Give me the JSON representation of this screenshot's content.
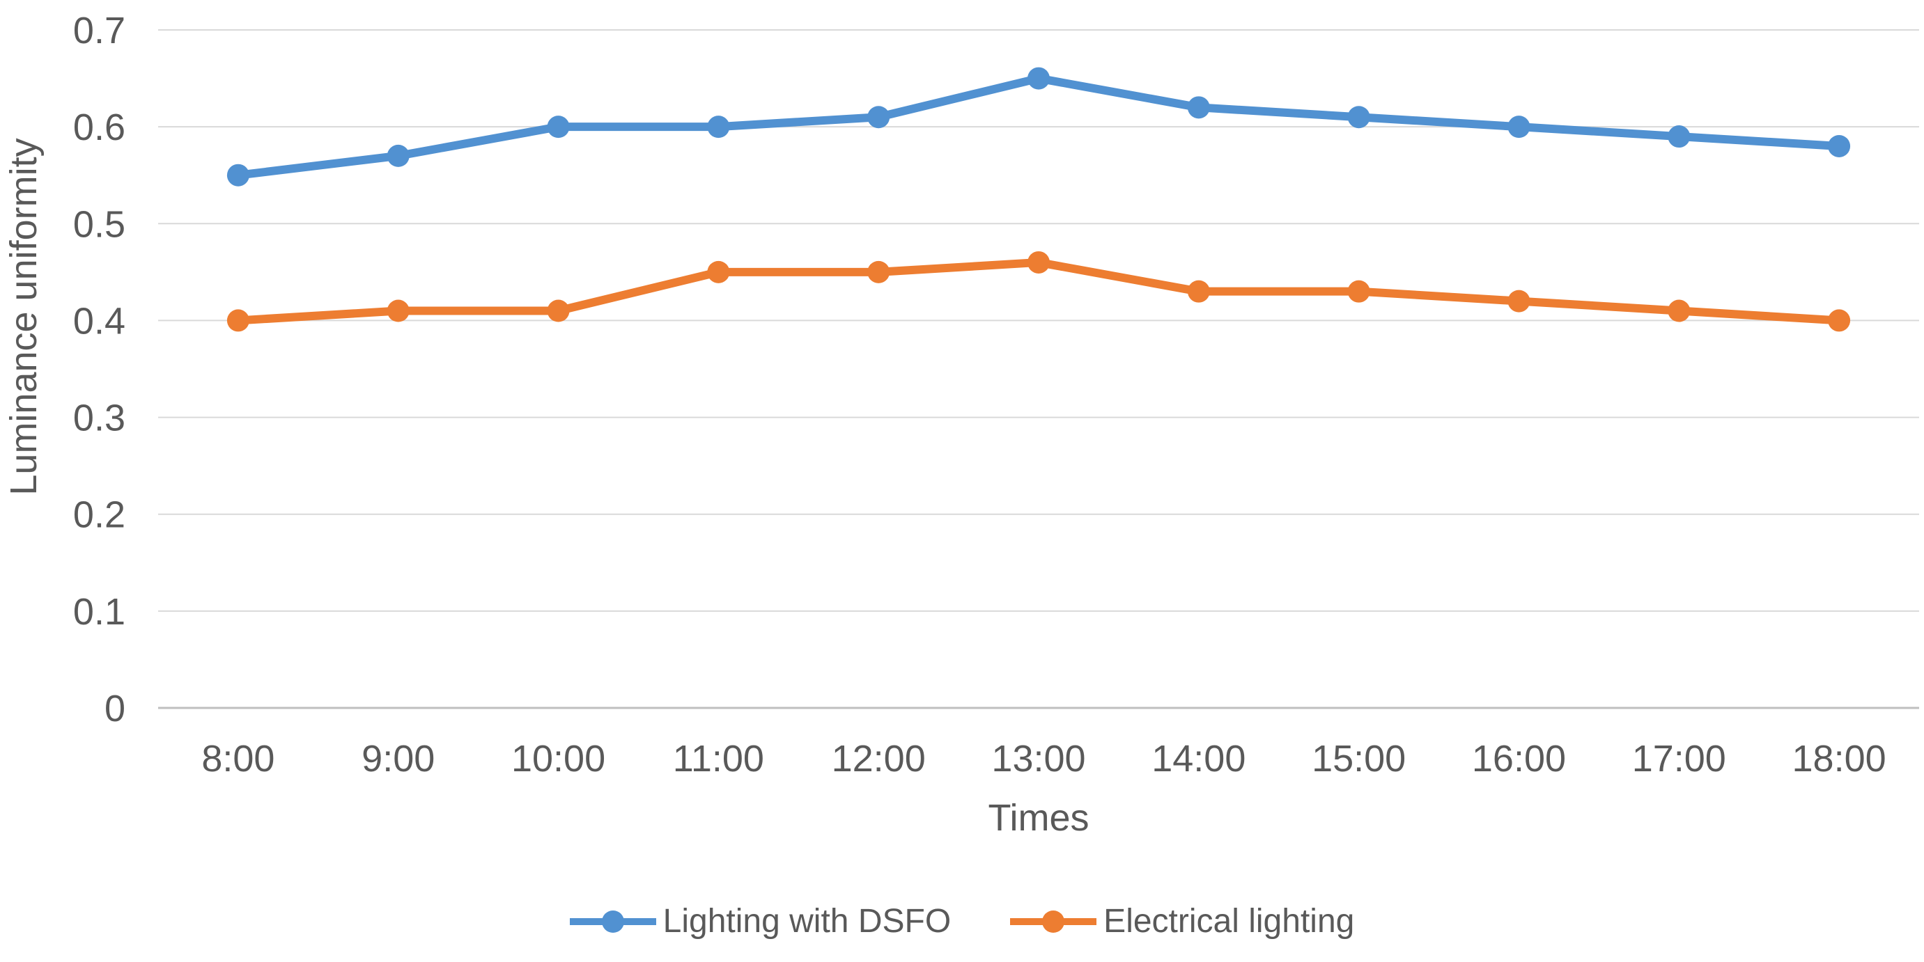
{
  "chart_data": {
    "type": "line",
    "title": "",
    "xlabel": "Times",
    "ylabel": "Luminance uniformity",
    "categories": [
      "8:00",
      "9:00",
      "10:00",
      "11:00",
      "12:00",
      "13:00",
      "14:00",
      "15:00",
      "16:00",
      "17:00",
      "18:00"
    ],
    "series": [
      {
        "name": "Lighting with DSFO",
        "color": "#5191D1",
        "values": [
          0.55,
          0.57,
          0.6,
          0.6,
          0.61,
          0.65,
          0.62,
          0.61,
          0.6,
          0.59,
          0.58
        ]
      },
      {
        "name": "Electrical lighting",
        "color": "#ED7D31",
        "values": [
          0.4,
          0.41,
          0.41,
          0.45,
          0.45,
          0.46,
          0.43,
          0.43,
          0.42,
          0.41,
          0.4
        ]
      }
    ],
    "ylim": [
      0,
      0.7
    ],
    "yticks": [
      0,
      0.1,
      0.2,
      0.3,
      0.4,
      0.5,
      0.6,
      0.7
    ],
    "ytick_labels": [
      "0",
      "0.1",
      "0.2",
      "0.3",
      "0.4",
      "0.5",
      "0.6",
      "0.7"
    ],
    "grid": "horizontal",
    "legend_position": "bottom",
    "marker": "circle",
    "styles": {
      "background": "#FFFFFF",
      "gridline_color": "#D9D9D9",
      "zero_axis_color": "#BFBFBF",
      "tick_text_color": "#595959",
      "axis_title_color": "#595959",
      "legend_text_color": "#595959"
    }
  }
}
